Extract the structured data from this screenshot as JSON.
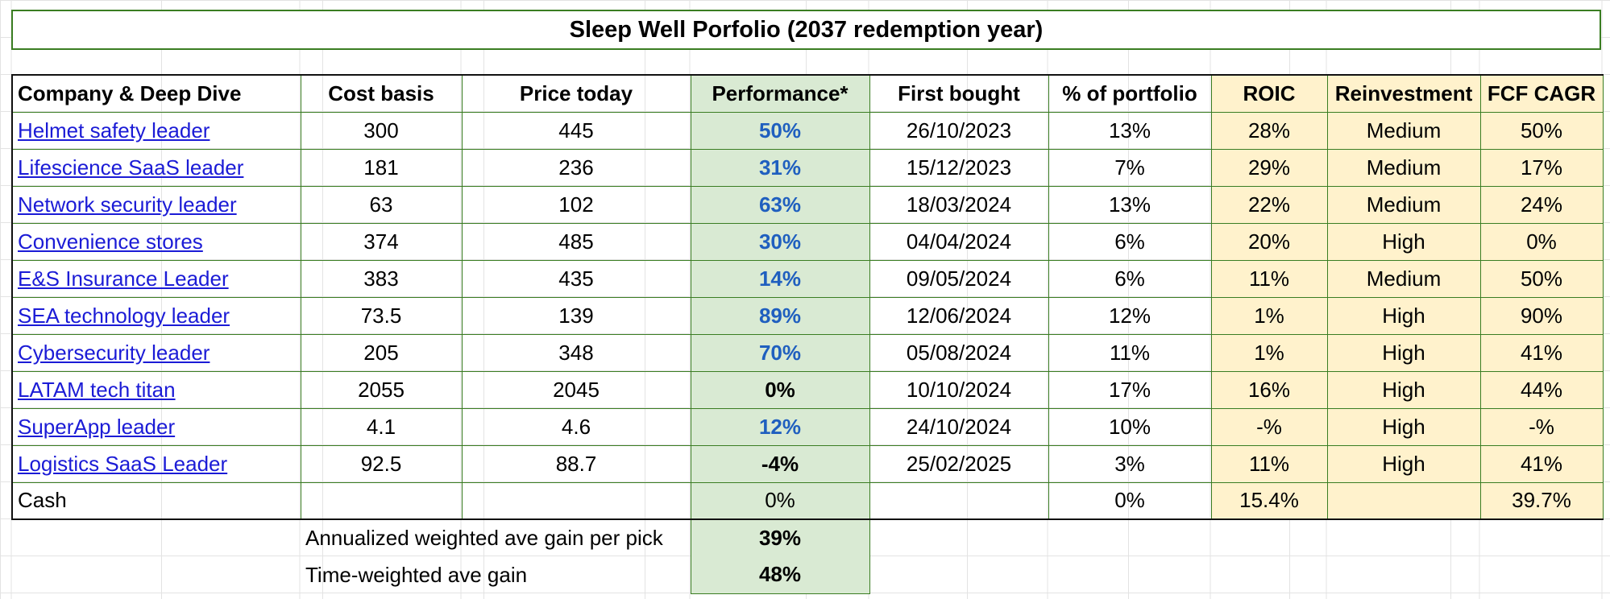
{
  "title": "Sleep Well Porfolio (2037 redemption year)",
  "headers": {
    "company": "Company & Deep Dive",
    "cost_basis": "Cost basis",
    "price_today": "Price today",
    "performance": "Performance*",
    "first_bought": "First bought",
    "pct_portfolio": "% of portfolio",
    "roic": "ROIC",
    "reinvestment": "Reinvestment",
    "fcf_cagr": "FCF CAGR"
  },
  "rows": [
    {
      "company": "Helmet safety leader",
      "cost_basis": "300",
      "price_today": "445",
      "performance": "50%",
      "first_bought": "26/10/2023",
      "pct_portfolio": "13%",
      "roic": "28%",
      "reinvestment": "Medium",
      "fcf_cagr": "50%"
    },
    {
      "company": "Lifescience SaaS leader",
      "cost_basis": "181",
      "price_today": "236",
      "performance": "31%",
      "first_bought": "15/12/2023",
      "pct_portfolio": "7%",
      "roic": "29%",
      "reinvestment": "Medium",
      "fcf_cagr": "17%"
    },
    {
      "company": "Network security leader",
      "cost_basis": "63",
      "price_today": "102",
      "performance": "63%",
      "first_bought": "18/03/2024",
      "pct_portfolio": "13%",
      "roic": "22%",
      "reinvestment": "Medium",
      "fcf_cagr": "24%"
    },
    {
      "company": "Convenience stores",
      "cost_basis": "374",
      "price_today": "485",
      "performance": "30%",
      "first_bought": "04/04/2024",
      "pct_portfolio": "6%",
      "roic": "20%",
      "reinvestment": "High",
      "fcf_cagr": "0%"
    },
    {
      "company": "E&S Insurance Leader",
      "cost_basis": "383",
      "price_today": "435",
      "performance": "14%",
      "first_bought": "09/05/2024",
      "pct_portfolio": "6%",
      "roic": "11%",
      "reinvestment": "Medium",
      "fcf_cagr": "50%"
    },
    {
      "company": "SEA technology leader",
      "cost_basis": "73.5",
      "price_today": "139",
      "performance": "89%",
      "first_bought": "12/06/2024",
      "pct_portfolio": "12%",
      "roic": "1%",
      "reinvestment": "High",
      "fcf_cagr": "90%"
    },
    {
      "company": "Cybersecurity leader",
      "cost_basis": "205",
      "price_today": "348",
      "performance": "70%",
      "first_bought": "05/08/2024",
      "pct_portfolio": "11%",
      "roic": "1%",
      "reinvestment": "High",
      "fcf_cagr": "41%"
    },
    {
      "company": "LATAM tech titan",
      "cost_basis": "2055",
      "price_today": "2045",
      "performance": "0%",
      "first_bought": "10/10/2024",
      "pct_portfolio": "17%",
      "roic": "16%",
      "reinvestment": "High",
      "fcf_cagr": "44%"
    },
    {
      "company": "SuperApp leader",
      "cost_basis": "4.1",
      "price_today": "4.6",
      "performance": "12%",
      "first_bought": "24/10/2024",
      "pct_portfolio": "10%",
      "roic": "-%",
      "reinvestment": "High",
      "fcf_cagr": "-%"
    },
    {
      "company": "Logistics SaaS Leader",
      "cost_basis": "92.5",
      "price_today": "88.7",
      "performance": "-4%",
      "first_bought": "25/02/2025",
      "pct_portfolio": "3%",
      "roic": "11%",
      "reinvestment": "High",
      "fcf_cagr": "41%"
    }
  ],
  "cash": {
    "label": "Cash",
    "performance": "0%",
    "pct_portfolio": "0%",
    "roic": "15.4%",
    "fcf_cagr": "39.7%"
  },
  "summary": [
    {
      "label": "Annualized weighted ave gain per pick",
      "value": "39%"
    },
    {
      "label": "Time-weighted ave gain",
      "value": "48%"
    }
  ],
  "colors": {
    "border_green": "#3a7d22",
    "performance_bg": "#d9ead3",
    "yellow_bg": "#fff2cc",
    "positive_blue": "#1f5fbf",
    "link_blue": "#1b1bd6"
  }
}
